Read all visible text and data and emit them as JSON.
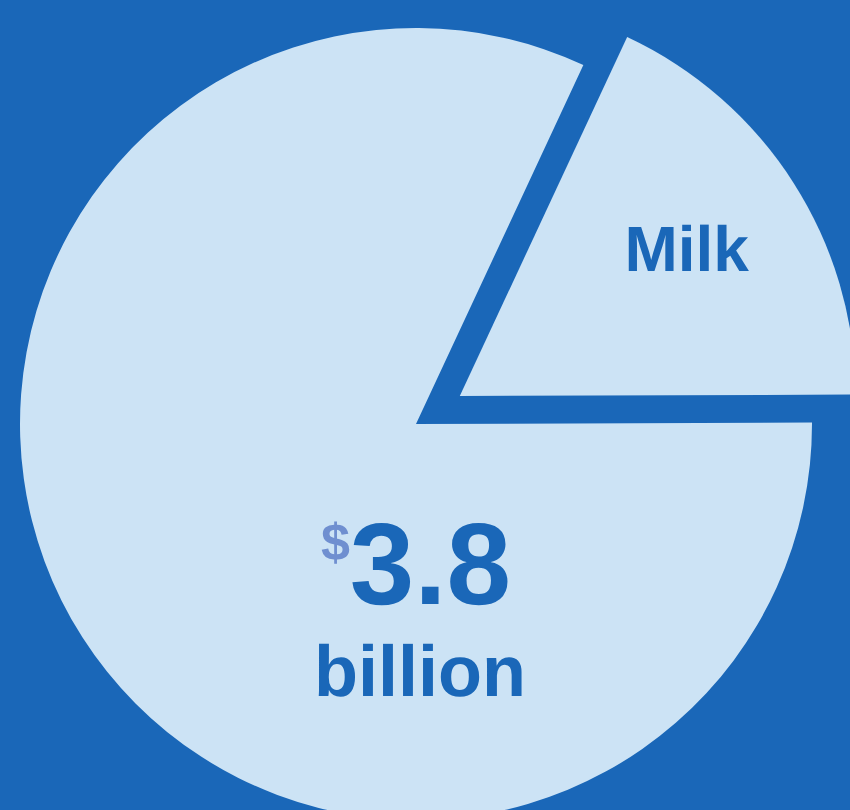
{
  "chart_data": {
    "type": "pie",
    "categories": [
      "Milk",
      null
    ],
    "values": [
      18,
      82
    ],
    "colors": [
      "#cce3f5",
      "#cce3f5"
    ],
    "annotations": [
      "$3.8 billion"
    ]
  }
}
